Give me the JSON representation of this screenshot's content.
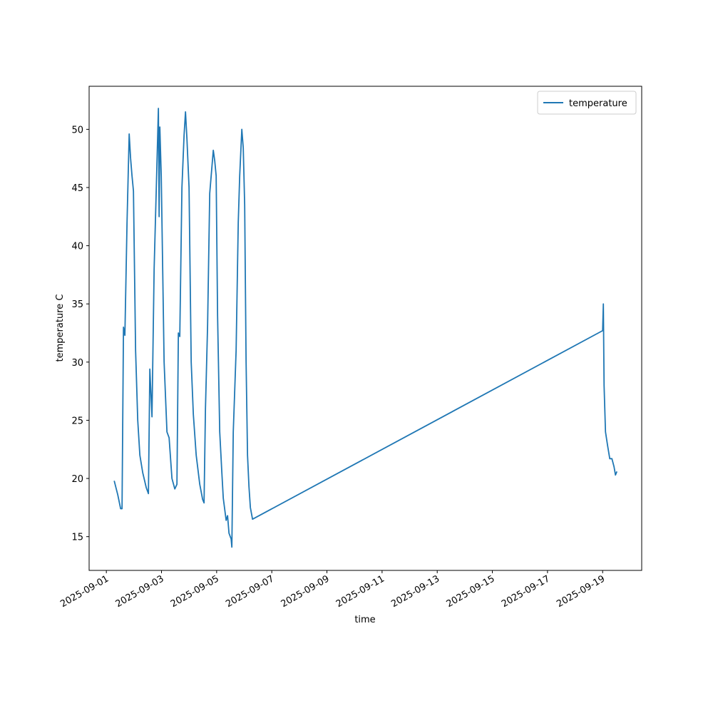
{
  "chart_data": {
    "type": "line",
    "xlabel": "time",
    "ylabel": "temperature C",
    "x": [
      "2025-09-01T06:50",
      "2025-09-01T09:56",
      "2025-09-01T12:25",
      "2025-09-01T13:39",
      "2025-09-01T14:54",
      "2025-09-01T16:08",
      "2025-09-01T18:00",
      "2025-09-01T19:52",
      "2025-09-01T21:06",
      "2025-09-01T22:20",
      "2025-09-01T23:35",
      "2025-09-02T01:27",
      "2025-09-02T03:19",
      "2025-09-02T05:10",
      "2025-09-02T07:39",
      "2025-09-02T10:45",
      "2025-09-02T12:37",
      "2025-09-02T13:51",
      "2025-09-02T15:43",
      "2025-09-02T17:35",
      "2025-09-02T19:26",
      "2025-09-02T21:18",
      "2025-09-02T21:56",
      "2025-09-02T22:33",
      "2025-09-02T23:47",
      "2025-09-03T01:02",
      "2025-09-03T02:16",
      "2025-09-03T04:45",
      "2025-09-03T06:37",
      "2025-09-03T09:06",
      "2025-09-03T11:35",
      "2025-09-03T13:26",
      "2025-09-03T14:41",
      "2025-09-03T15:55",
      "2025-09-03T17:47",
      "2025-09-03T19:39",
      "2025-09-03T20:53",
      "2025-09-03T22:08",
      "2025-09-03T23:59",
      "2025-09-04T01:51",
      "2025-09-04T03:43",
      "2025-09-04T06:12",
      "2025-09-04T09:18",
      "2025-09-04T11:47",
      "2025-09-04T13:02",
      "2025-09-04T14:16",
      "2025-09-04T16:08",
      "2025-09-04T17:59",
      "2025-09-04T21:05",
      "2025-09-04T22:20",
      "2025-09-04T23:35",
      "2025-09-05T00:49",
      "2025-09-05T02:41",
      "2025-09-05T04:32",
      "2025-09-05T05:47",
      "2025-09-05T08:16",
      "2025-09-05T09:31",
      "2025-09-05T10:45",
      "2025-09-05T12:37",
      "2025-09-05T13:14",
      "2025-09-05T14:28",
      "2025-09-05T16:57",
      "2025-09-05T18:49",
      "2025-09-05T20:04",
      "2025-09-05T21:55",
      "2025-09-05T23:10",
      "2025-09-06T00:24",
      "2025-09-06T01:38",
      "2025-09-06T02:53",
      "2025-09-06T04:08",
      "2025-09-06T05:22",
      "2025-09-06T07:14",
      "2025-09-19T00:00",
      "2025-09-19T00:37",
      "2025-09-19T01:15",
      "2025-09-19T02:29",
      "2025-09-19T04:21",
      "2025-09-19T06:12",
      "2025-09-19T08:04",
      "2025-09-19T09:56",
      "2025-09-19T11:10",
      "2025-09-19T12:25"
    ],
    "series": [
      {
        "name": "temperature",
        "color": "#1f77b4",
        "values": [
          19.8,
          18.6,
          17.4,
          17.4,
          33,
          32.3,
          42,
          49.6,
          47.5,
          46,
          44.7,
          31,
          25,
          22,
          20.5,
          19.2,
          18.7,
          29.4,
          25.3,
          38,
          44.8,
          51.8,
          42.5,
          50.2,
          46,
          38,
          30,
          24,
          23.5,
          20,
          19.1,
          19.5,
          32.5,
          32.2,
          45,
          49.5,
          51.5,
          49.2,
          45,
          30,
          25.5,
          22,
          19.5,
          18.2,
          17.9,
          26,
          33.2,
          44.5,
          48.2,
          47.3,
          46,
          34,
          24,
          20.5,
          18.3,
          16.4,
          16.8,
          15.3,
          14.8,
          14.1,
          24,
          31,
          42,
          46,
          50,
          48.4,
          43.5,
          30,
          22,
          19.3,
          17.5,
          16.5,
          32.7,
          35,
          28,
          24,
          22.8,
          21.7,
          21.7,
          21,
          20.3,
          20.6
        ]
      }
    ],
    "xlim": [
      "2025-08-31T09:00",
      "2025-09-20T10:00"
    ],
    "xticks": [
      "2025-09-01",
      "2025-09-03",
      "2025-09-05",
      "2025-09-07",
      "2025-09-09",
      "2025-09-11",
      "2025-09-13",
      "2025-09-15",
      "2025-09-17",
      "2025-09-19"
    ],
    "ylim": [
      12.1,
      53.7
    ],
    "yticks": [
      15,
      20,
      25,
      30,
      35,
      40,
      45,
      50
    ],
    "legend": "upper right"
  }
}
